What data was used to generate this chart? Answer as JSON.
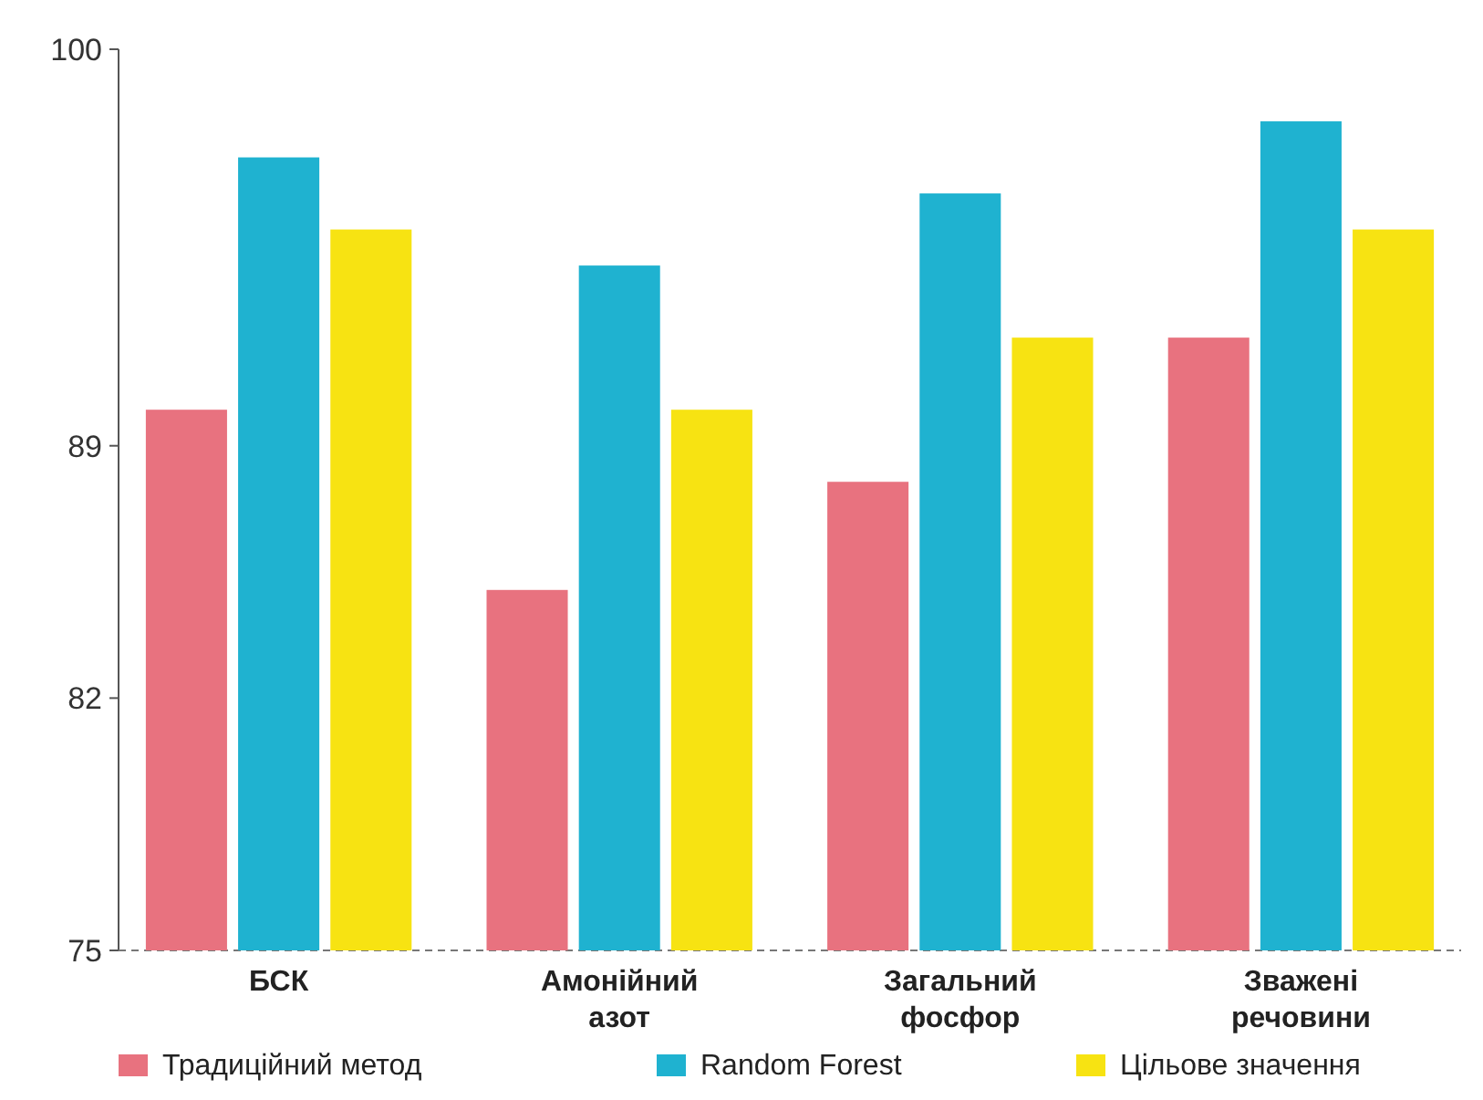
{
  "chart_data": {
    "type": "bar",
    "categories": [
      "БСК",
      "Амонійний\nазот",
      "Загальний\nфосфор",
      "Зважені\nречовини"
    ],
    "series": [
      {
        "name": "Традиційний метод",
        "color": "#e8727f",
        "values": [
          90,
          85,
          88,
          92
        ]
      },
      {
        "name": "Random Forest",
        "color": "#1fb2d0",
        "values": [
          97,
          94,
          96,
          98
        ]
      },
      {
        "name": "Цільове значення",
        "color": "#f7e312",
        "values": [
          95,
          90,
          92,
          95
        ]
      }
    ],
    "ylim": [
      75,
      100
    ],
    "yticks": [
      75,
      82,
      89,
      100
    ],
    "legend": "bottom"
  }
}
